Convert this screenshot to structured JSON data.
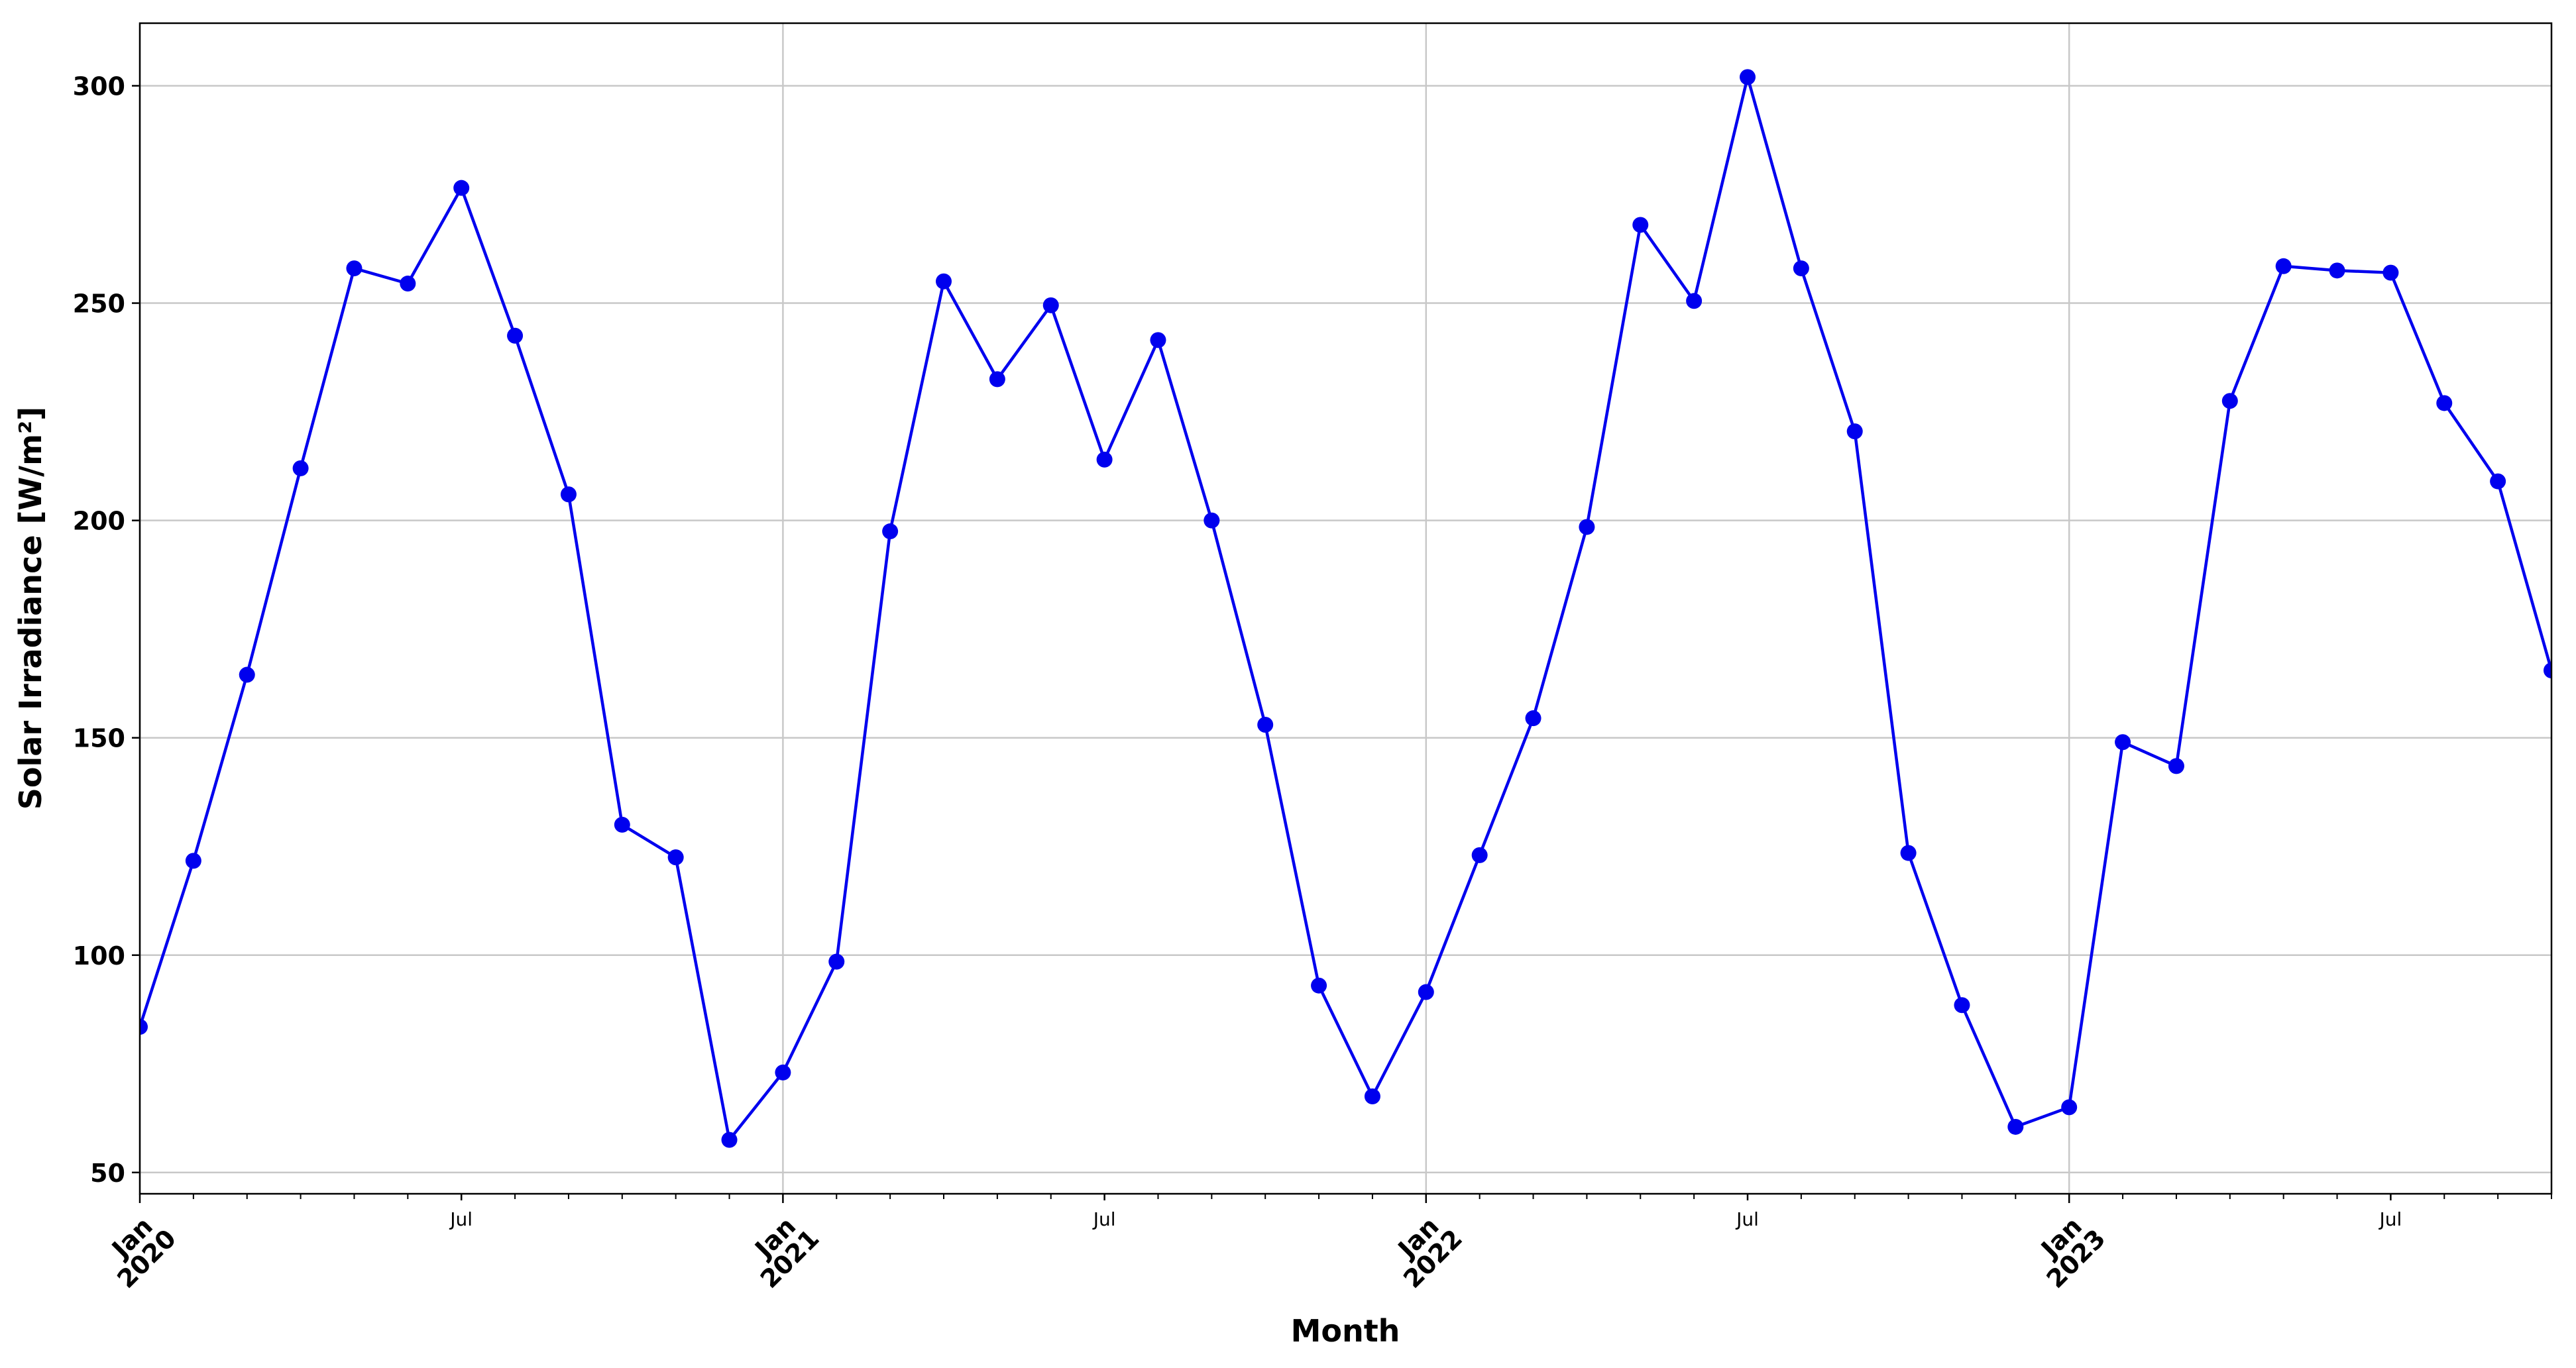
{
  "chart_data": {
    "type": "line",
    "x_label": "Month",
    "y_label": "Solar Irradiance [W/m²]",
    "x": [
      "2020-01",
      "2020-02",
      "2020-03",
      "2020-04",
      "2020-05",
      "2020-06",
      "2020-07",
      "2020-08",
      "2020-09",
      "2020-10",
      "2020-11",
      "2020-12",
      "2021-01",
      "2021-02",
      "2021-03",
      "2021-04",
      "2021-05",
      "2021-06",
      "2021-07",
      "2021-08",
      "2021-09",
      "2021-10",
      "2021-11",
      "2021-12",
      "2022-01",
      "2022-02",
      "2022-03",
      "2022-04",
      "2022-05",
      "2022-06",
      "2022-07",
      "2022-08",
      "2022-09",
      "2022-10",
      "2022-11",
      "2022-12",
      "2023-01",
      "2023-02",
      "2023-03",
      "2023-04",
      "2023-05",
      "2023-06",
      "2023-07",
      "2023-08",
      "2023-09",
      "2023-10"
    ],
    "series": [
      {
        "color": "#0000ee",
        "values": [
          83.5,
          121.7,
          164.5,
          212,
          258,
          254.5,
          276.5,
          242.5,
          206,
          130,
          122.5,
          57.5,
          73,
          98.5,
          197.5,
          255,
          232.5,
          249.5,
          214,
          241.5,
          200,
          153,
          93,
          67.5,
          91.5,
          123,
          154.5,
          198.5,
          268,
          250.5,
          302,
          258,
          220.5,
          123.5,
          88.5,
          60.5,
          65,
          149,
          143.5,
          227.5,
          258.5,
          257.5,
          257,
          227,
          209,
          165.5
        ]
      }
    ],
    "xlim": [
      "2020-01",
      "2023-10"
    ],
    "xticks": [
      {
        "value": "2020-01",
        "label": "Jan 2020"
      },
      {
        "value": "2020-07",
        "label": "Jul"
      },
      {
        "value": "2021-01",
        "label": "Jan 2021"
      },
      {
        "value": "2021-07",
        "label": "Jul"
      },
      {
        "value": "2022-01",
        "label": "Jan 2022"
      },
      {
        "value": "2022-07",
        "label": "Jul"
      },
      {
        "value": "2023-01",
        "label": "Jan 2023"
      },
      {
        "value": "2023-07",
        "label": "Jul"
      }
    ],
    "ylim": [
      45.1,
      314.4
    ],
    "yticks": [
      50,
      100,
      150,
      200,
      250,
      300
    ],
    "grid": true
  }
}
